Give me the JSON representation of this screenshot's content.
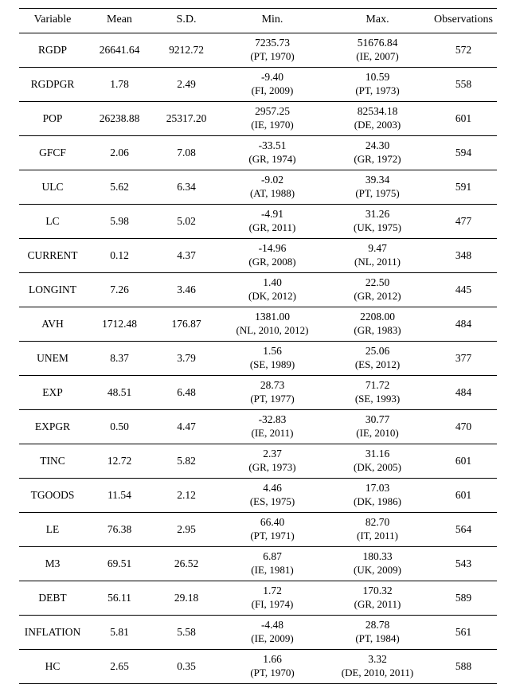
{
  "table": {
    "header": {
      "variable": "Variable",
      "mean": "Mean",
      "sd": "S.D.",
      "min": "Min.",
      "max": "Max.",
      "obs": "Observations"
    },
    "rows": [
      {
        "variable": "RGDP",
        "mean": "26641.64",
        "sd": "9212.72",
        "min_value": "7235.73",
        "min_note": "(PT, 1970)",
        "max_value": "51676.84",
        "max_note": "(IE, 2007)",
        "obs": "572"
      },
      {
        "variable": "RGDPGR",
        "mean": "1.78",
        "sd": "2.49",
        "min_value": "-9.40",
        "min_note": "(FI, 2009)",
        "max_value": "10.59",
        "max_note": "(PT, 1973)",
        "obs": "558"
      },
      {
        "variable": "POP",
        "mean": "26238.88",
        "sd": "25317.20",
        "min_value": "2957.25",
        "min_note": "(IE, 1970)",
        "max_value": "82534.18",
        "max_note": "(DE, 2003)",
        "obs": "601"
      },
      {
        "variable": "GFCF",
        "mean": "2.06",
        "sd": "7.08",
        "min_value": "-33.51",
        "min_note": "(GR, 1974)",
        "max_value": "24.30",
        "max_note": "(GR, 1972)",
        "obs": "594"
      },
      {
        "variable": "ULC",
        "mean": "5.62",
        "sd": "6.34",
        "min_value": "-9.02",
        "min_note": "(AT, 1988)",
        "max_value": "39.34",
        "max_note": "(PT, 1975)",
        "obs": "591"
      },
      {
        "variable": "LC",
        "mean": "5.98",
        "sd": "5.02",
        "min_value": "-4.91",
        "min_note": "(GR, 2011)",
        "max_value": "31.26",
        "max_note": "(UK, 1975)",
        "obs": "477"
      },
      {
        "variable": "CURRENT",
        "mean": "0.12",
        "sd": "4.37",
        "min_value": "-14.96",
        "min_note": "(GR, 2008)",
        "max_value": "9.47",
        "max_note": "(NL, 2011)",
        "obs": "348"
      },
      {
        "variable": "LONGINT",
        "mean": "7.26",
        "sd": "3.46",
        "min_value": "1.40",
        "min_note": "(DK, 2012)",
        "max_value": "22.50",
        "max_note": "(GR, 2012)",
        "obs": "445"
      },
      {
        "variable": "AVH",
        "mean": "1712.48",
        "sd": "176.87",
        "min_value": "1381.00",
        "min_note": "(NL, 2010, 2012)",
        "max_value": "2208.00",
        "max_note": "(GR, 1983)",
        "obs": "484"
      },
      {
        "variable": "UNEM",
        "mean": "8.37",
        "sd": "3.79",
        "min_value": "1.56",
        "min_note": "(SE, 1989)",
        "max_value": "25.06",
        "max_note": "(ES, 2012)",
        "obs": "377"
      },
      {
        "variable": "EXP",
        "mean": "48.51",
        "sd": "6.48",
        "min_value": "28.73",
        "min_note": "(PT, 1977)",
        "max_value": "71.72",
        "max_note": "(SE, 1993)",
        "obs": "484"
      },
      {
        "variable": "EXPGR",
        "mean": "0.50",
        "sd": "4.47",
        "min_value": "-32.83",
        "min_note": "(IE, 2011)",
        "max_value": "30.77",
        "max_note": "(IE, 2010)",
        "obs": "470"
      },
      {
        "variable": "TINC",
        "mean": "12.72",
        "sd": "5.82",
        "min_value": "2.37",
        "min_note": "(GR, 1973)",
        "max_value": "31.16",
        "max_note": "(DK, 2005)",
        "obs": "601"
      },
      {
        "variable": "TGOODS",
        "mean": "11.54",
        "sd": "2.12",
        "min_value": "4.46",
        "min_note": "(ES, 1975)",
        "max_value": "17.03",
        "max_note": "(DK, 1986)",
        "obs": "601"
      },
      {
        "variable": "LE",
        "mean": "76.38",
        "sd": "2.95",
        "min_value": "66.40",
        "min_note": "(PT, 1971)",
        "max_value": "82.70",
        "max_note": "(IT, 2011)",
        "obs": "564"
      },
      {
        "variable": "M3",
        "mean": "69.51",
        "sd": "26.52",
        "min_value": "6.87",
        "min_note": "(IE, 1981)",
        "max_value": "180.33",
        "max_note": "(UK, 2009)",
        "obs": "543"
      },
      {
        "variable": "DEBT",
        "mean": "56.11",
        "sd": "29.18",
        "min_value": "1.72",
        "min_note": "(FI, 1974)",
        "max_value": "170.32",
        "max_note": "(GR, 2011)",
        "obs": "589"
      },
      {
        "variable": "INFLATION",
        "mean": "5.81",
        "sd": "5.58",
        "min_value": "-4.48",
        "min_note": "(IE, 2009)",
        "max_value": "28.78",
        "max_note": "(PT, 1984)",
        "obs": "561"
      },
      {
        "variable": "HC",
        "mean": "2.65",
        "sd": "0.35",
        "min_value": "1.66",
        "min_note": "(PT, 1970)",
        "max_value": "3.32",
        "max_note": "(DE, 2010, 2011)",
        "obs": "588"
      }
    ]
  }
}
